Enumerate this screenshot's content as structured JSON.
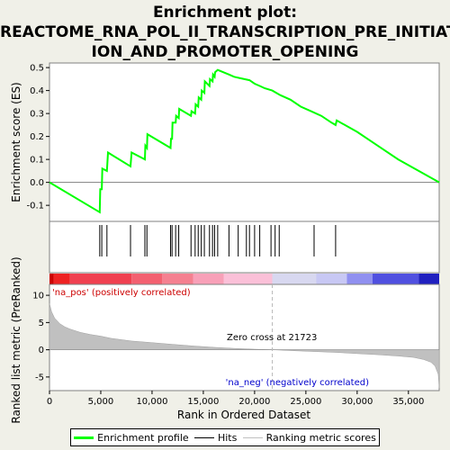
{
  "title": "Enrichment plot:\nREACTOME_RNA_POL_II_TRANSCRIPTION_PRE_INITIAT\nION_AND_PROMOTER_OPENING",
  "colors": {
    "enrichment": "#00ff00",
    "hits": "#000000",
    "ranking": "#c0c0c0",
    "zero_cross": "#bbbbbb",
    "pos_label": "#cc0000",
    "neg_label": "#0000cc"
  },
  "legend": {
    "enrichment_label": "Enrichment profile",
    "hits_label": "Hits",
    "ranking_label": "Ranking metric scores"
  },
  "annotations": {
    "pos": "'na_pos' (positively correlated)",
    "neg": "'na_neg' (negatively correlated)",
    "zero_cross": "Zero cross at 21723"
  },
  "chart_data": {
    "type": "line",
    "top_panel": {
      "ylabel": "Enrichment score (ES)",
      "ylim": [
        -0.17,
        0.52
      ],
      "yticks": [
        -0.1,
        0.0,
        0.1,
        0.2,
        0.3,
        0.4,
        0.5
      ],
      "ytick_labels": [
        "-0.1",
        "0.0",
        "0.1",
        "0.2",
        "0.3",
        "0.4",
        "0.5"
      ],
      "series": [
        {
          "x": [
            0,
            4900,
            4950,
            5100,
            5150,
            5600,
            5700,
            7900,
            8000,
            9300,
            9350,
            9500,
            9550,
            11800,
            11850,
            11950,
            12000,
            12300,
            12350,
            12600,
            12650,
            13800,
            13850,
            14200,
            14250,
            14500,
            14550,
            14800,
            14850,
            15100,
            15150,
            15600,
            15650,
            15900,
            15950,
            16100,
            16150,
            16400,
            17500,
            18000,
            18500,
            19000,
            19500,
            20000,
            20500,
            21000,
            21723,
            22500,
            23500,
            24500,
            25500,
            26500,
            27500,
            27900,
            28000,
            30000,
            32000,
            34000,
            36000,
            38000
          ],
          "y": [
            0.0,
            -0.13,
            -0.03,
            -0.03,
            0.06,
            0.05,
            0.13,
            0.07,
            0.13,
            0.1,
            0.16,
            0.15,
            0.21,
            0.15,
            0.19,
            0.19,
            0.26,
            0.26,
            0.29,
            0.28,
            0.32,
            0.29,
            0.31,
            0.3,
            0.34,
            0.33,
            0.37,
            0.36,
            0.4,
            0.39,
            0.44,
            0.42,
            0.45,
            0.44,
            0.47,
            0.46,
            0.48,
            0.49,
            0.47,
            0.46,
            0.455,
            0.45,
            0.445,
            0.43,
            0.42,
            0.41,
            0.4,
            0.38,
            0.36,
            0.33,
            0.31,
            0.29,
            0.26,
            0.25,
            0.27,
            0.22,
            0.16,
            0.1,
            0.05,
            0.0
          ]
        }
      ]
    },
    "hits": [
      4900,
      5100,
      5600,
      7900,
      9300,
      9500,
      11800,
      11950,
      12300,
      12600,
      13800,
      14200,
      14500,
      14800,
      15100,
      15600,
      15900,
      16100,
      16400,
      17500,
      18400,
      19200,
      19500,
      20000,
      20500,
      21600,
      22000,
      22400,
      25800,
      27900
    ],
    "bottom_panel": {
      "ylabel": "Ranked list metric (PreRanked)",
      "xlabel": "Rank in Ordered Dataset",
      "xlim": [
        0,
        38000
      ],
      "xticks": [
        0,
        5000,
        10000,
        15000,
        20000,
        25000,
        30000,
        35000
      ],
      "xtick_labels": [
        "0",
        "5,000",
        "10,000",
        "15,000",
        "20,000",
        "25,000",
        "30,000",
        "35,000"
      ],
      "ylim": [
        -7.5,
        12
      ],
      "yticks": [
        -5,
        0,
        5,
        10
      ],
      "ytick_labels": [
        "-5",
        "0",
        "5",
        "10"
      ],
      "zero_cross": 21723,
      "curve": {
        "x": [
          0,
          200,
          500,
          1000,
          1500,
          2000,
          3000,
          4000,
          5000,
          6000,
          8000,
          10000,
          12000,
          14000,
          16000,
          18000,
          20000,
          21723,
          24000,
          26000,
          28000,
          30000,
          32000,
          34000,
          35500,
          36500,
          37200,
          37600,
          37900,
          38000
        ],
        "y": [
          8.5,
          7.0,
          5.8,
          4.8,
          4.2,
          3.8,
          3.2,
          2.8,
          2.5,
          2.1,
          1.6,
          1.3,
          1.0,
          0.7,
          0.45,
          0.25,
          0.1,
          0.0,
          -0.2,
          -0.35,
          -0.5,
          -0.7,
          -0.9,
          -1.15,
          -1.4,
          -1.8,
          -2.3,
          -3.0,
          -4.5,
          -7.0
        ]
      }
    }
  }
}
